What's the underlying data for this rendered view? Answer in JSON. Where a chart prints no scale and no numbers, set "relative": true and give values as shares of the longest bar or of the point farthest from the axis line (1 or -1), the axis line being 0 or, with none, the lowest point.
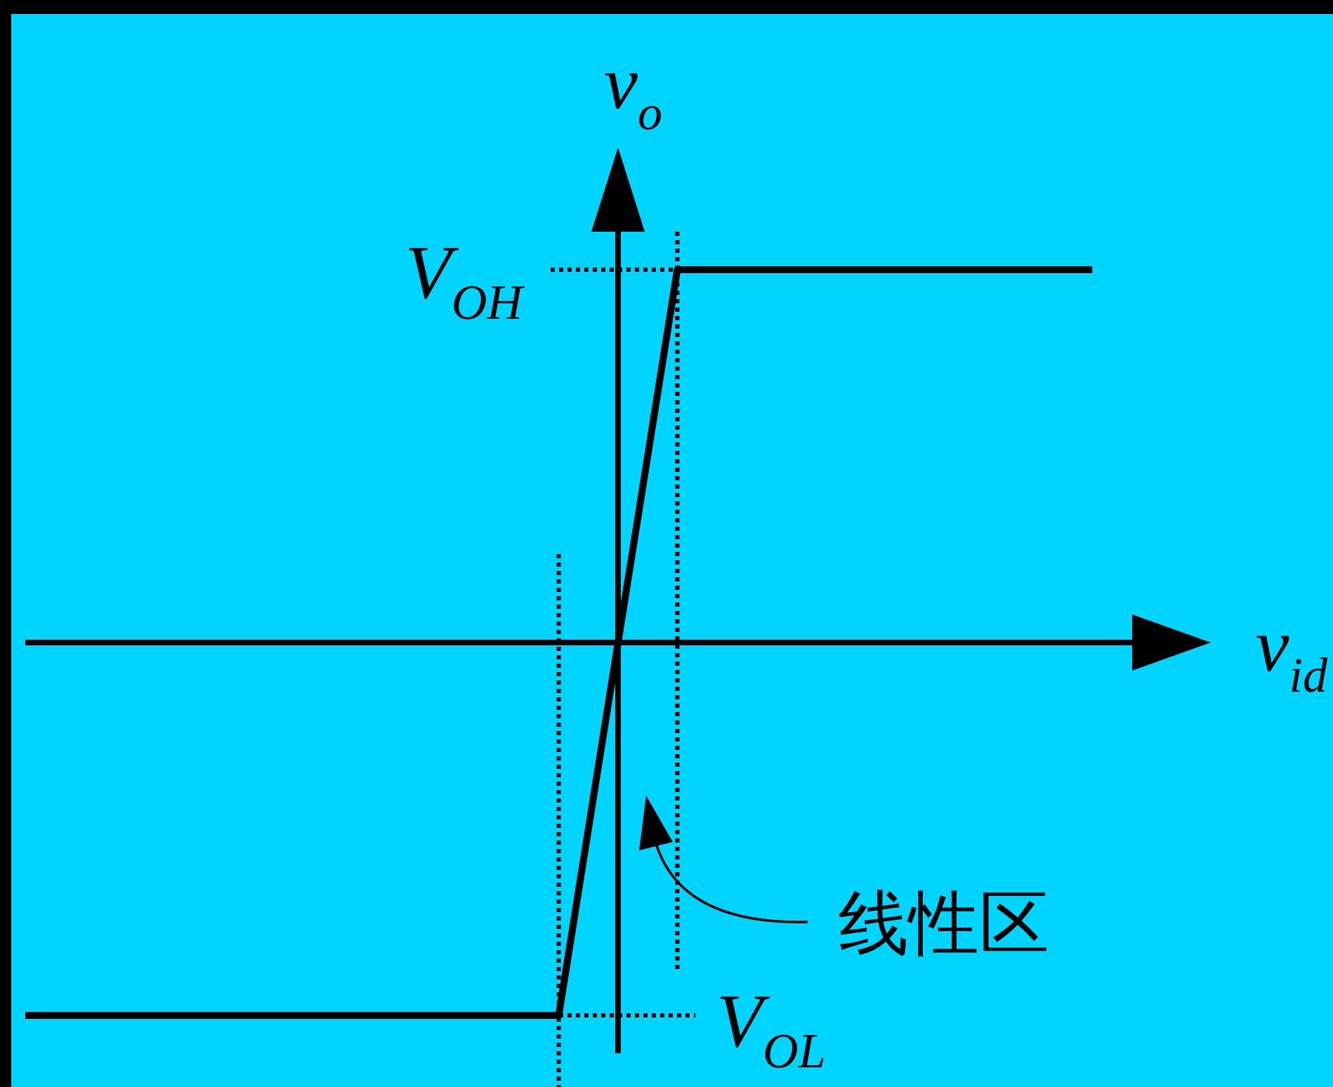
{
  "chart_data": {
    "type": "line",
    "relative": true,
    "xlabel": "v$_{id}$",
    "ylabel": "v$_{o}$",
    "categories": [
      null,
      null,
      null,
      null,
      null,
      null,
      null,
      null,
      null,
      null,
      null,
      null,
      null,
      null,
      null,
      null,
      null,
      null,
      null,
      null,
      null
    ],
    "values": [
      -1,
      -1,
      -1,
      -1,
      -1,
      -1,
      -1,
      -1,
      -1,
      -1,
      0,
      1,
      1,
      1,
      1,
      1,
      1,
      1,
      1,
      null,
      null
    ],
    "color": "#000000",
    "line_style": "solid",
    "ref_lines": [
      {
        "axis": "y",
        "value": 1,
        "label": "V$_{OH}$",
        "line_style": "dotted"
      },
      {
        "axis": "y",
        "value": -1,
        "label": "V$_{OL}$",
        "line_style": "dotted"
      }
    ],
    "annotations": [
      "线性区"
    ]
  }
}
